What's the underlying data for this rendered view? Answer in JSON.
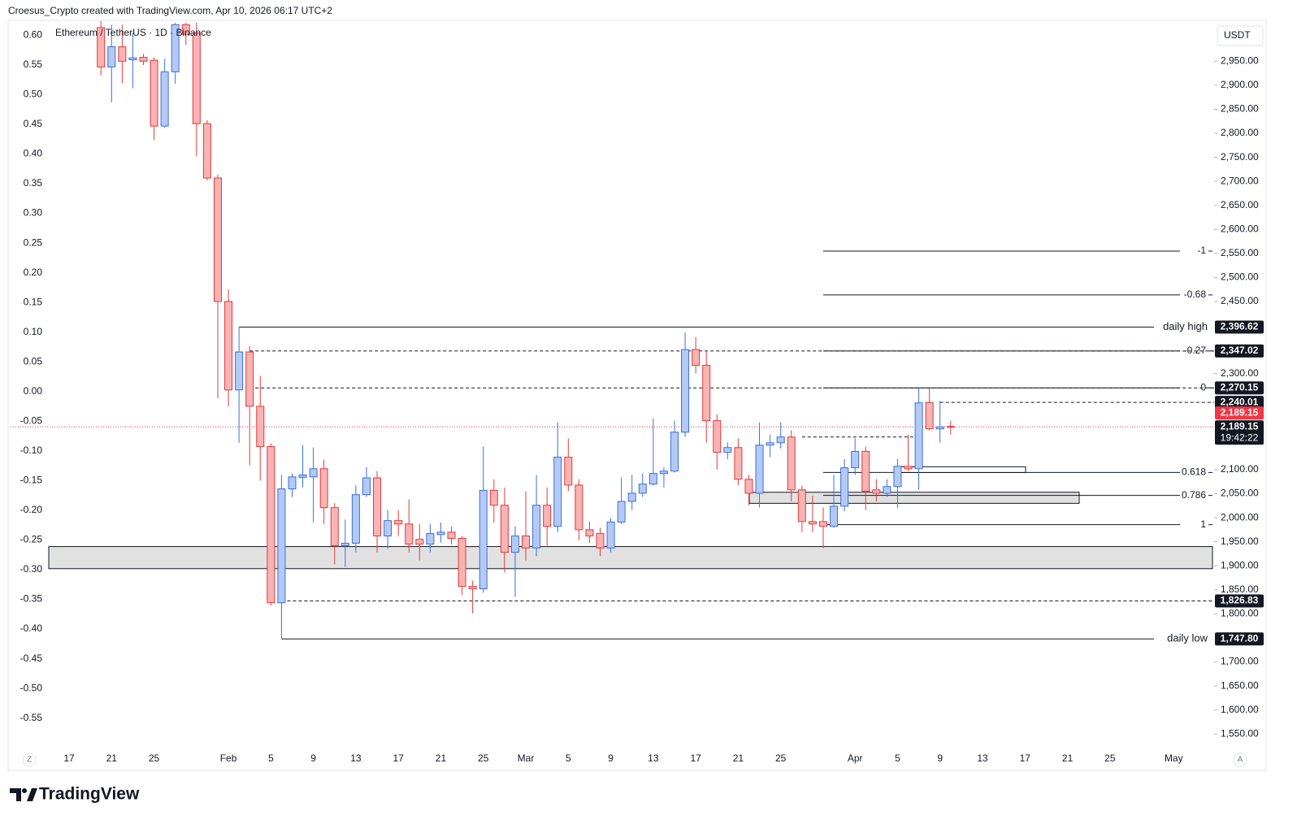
{
  "chart_data": {
    "type": "candlestick",
    "credit": "Croesus_Crypto created with TradingView.com, Apr 10, 2026 06:17 UTC+2",
    "title": "Ethereum / TetherUS · 1D · Binance",
    "currency": "USDT",
    "scale_buttons": [
      "Z",
      "A"
    ],
    "brand": "TradingView",
    "up_color": "#3a6fe0",
    "up_fill": "#b4caf4",
    "down_color": "#e5393b",
    "down_fill": "#f6b4b4",
    "categories": [
      "17",
      null,
      null,
      null,
      "21",
      null,
      null,
      null,
      "25",
      null,
      null,
      null,
      null,
      null,
      null,
      "Feb",
      null,
      null,
      null,
      "5",
      null,
      null,
      null,
      "9",
      null,
      null,
      null,
      "13",
      null,
      null,
      null,
      "17",
      null,
      null,
      null,
      "21",
      null,
      null,
      null,
      "25",
      null,
      null,
      null,
      "Mar",
      null,
      null,
      null,
      "5",
      null,
      null,
      null,
      "9",
      null,
      null,
      null,
      "13",
      null,
      null,
      null,
      "17",
      null,
      null,
      null,
      "21",
      null,
      null,
      null,
      "25",
      null,
      null,
      null,
      null,
      null,
      null,
      "Apr",
      null,
      null,
      null,
      "5",
      null,
      null,
      null,
      "9",
      null,
      null,
      null,
      "13",
      null,
      null,
      null,
      "17",
      null,
      null,
      null,
      "21",
      null,
      null,
      null,
      "25",
      null,
      null,
      null,
      null,
      null,
      "May"
    ],
    "open": [
      null,
      null,
      null,
      3020,
      2938,
      2980,
      2953,
      2958,
      2952,
      2815,
      2928,
      3026,
      3009,
      2820,
      2707,
      2450,
      2266,
      2345,
      2232,
      2148,
      1823,
      2060,
      2084,
      2085,
      2102,
      2021,
      1942,
      1947,
      2048,
      2083,
      1962,
      1994,
      1987,
      1955,
      1945,
      1965,
      1970,
      1957,
      1857,
      1852,
      2057,
      2026,
      1928,
      1962,
      1937,
      2026,
      1982,
      2126,
      2068,
      1975,
      1967,
      1937,
      1991,
      2034,
      2051,
      2070,
      2092,
      2097,
      2178,
      2350,
      2317,
      2202,
      2136,
      2146,
      2080,
      2051,
      2151,
      2156,
      2168,
      2058,
      1992,
      1992,
      1982,
      2024,
      2104,
      2138,
      2058,
      2051,
      2065,
      2107,
      2102,
      2240,
      2185,
      2190,
      null,
      null,
      null,
      null,
      null,
      null,
      null,
      null,
      null,
      null,
      null,
      null,
      null,
      null,
      null,
      null,
      null,
      null,
      null,
      null,
      null
    ],
    "high": [
      null,
      null,
      null,
      3040,
      3026,
      3026,
      3009,
      2965,
      2958,
      2955,
      3030,
      3030,
      3030,
      2827,
      2714,
      2475,
      2396.62,
      2357,
      2295,
      2155,
      2089,
      2092,
      2151,
      2146,
      2121,
      2030,
      1996,
      2067,
      2105,
      2097,
      2016,
      2016,
      2038,
      1987,
      1987,
      1990,
      1982,
      1962,
      1869,
      2148,
      2080,
      2063,
      1982,
      2055,
      2089,
      2063,
      2198,
      2165,
      2080,
      1992,
      1979,
      1999,
      2084,
      2089,
      2092,
      2207,
      2105,
      2202,
      2386,
      2376,
      2347,
      2215,
      2156,
      2165,
      2089,
      2198,
      2173,
      2198,
      2182,
      2067,
      2046,
      2021,
      2089,
      2122,
      2165,
      2148,
      2080,
      2080,
      2122,
      2173,
      2270.15,
      2270,
      2243,
      2202,
      null,
      null,
      null,
      null,
      null,
      null,
      null,
      null,
      null,
      null,
      null,
      null,
      null,
      null,
      null,
      null,
      null,
      null,
      null,
      null,
      null
    ],
    "low": [
      null,
      null,
      null,
      2920,
      2864,
      2904,
      2894,
      2942,
      2786,
      2811,
      2903,
      2984,
      2752,
      2702,
      2249,
      2232,
      2156,
      2109,
      2077,
      1817,
      1747.8,
      2043,
      2063,
      1990,
      1987,
      1903,
      1898,
      1928,
      2043,
      1928,
      1935,
      1962,
      1928,
      1911,
      1928,
      1948,
      1945,
      1839,
      1801,
      1844,
      1990,
      1886,
      1835,
      1911,
      1920,
      1942,
      1970,
      2055,
      1953,
      1948,
      1920,
      1928,
      1987,
      2016,
      2043,
      2067,
      2063,
      2094,
      2168,
      2300,
      2156,
      2100,
      2122,
      2068,
      2026,
      2021,
      2126,
      2144,
      2034,
      1970,
      1970,
      1937,
      1979,
      2013,
      2089,
      2016,
      2034,
      2043,
      2021,
      2097,
      2058,
      2182,
      2156,
      2173,
      null,
      null,
      null,
      null,
      null,
      null,
      null,
      null,
      null,
      null,
      null,
      null,
      null,
      null,
      null,
      null,
      null,
      null,
      null,
      null,
      null
    ],
    "close": [
      null,
      null,
      null,
      2938,
      2980,
      2950,
      2957,
      2950,
      2815,
      2928,
      3026,
      3006,
      2820,
      2707,
      2450,
      2266,
      2345,
      2232,
      2148,
      1823,
      2060,
      2085,
      2089,
      2102,
      2021,
      1942,
      1947,
      2048,
      2083,
      1962,
      1994,
      1987,
      1945,
      1945,
      1967,
      1970,
      1957,
      1857,
      1852,
      2057,
      2026,
      1928,
      1962,
      1937,
      2026,
      1982,
      2126,
      2068,
      1975,
      1962,
      1937,
      1991,
      2034,
      2051,
      2070,
      2092,
      2097,
      2178,
      2350,
      2317,
      2202,
      2136,
      2146,
      2080,
      2051,
      2151,
      2156,
      2168,
      2058,
      1992,
      1987,
      1982,
      2024,
      2104,
      2138,
      2055,
      2051,
      2065,
      2107,
      2102,
      2239,
      2185,
      2189,
      2189.15,
      null,
      null,
      null,
      null,
      null,
      null,
      null,
      null,
      null,
      null,
      null,
      null,
      null,
      null,
      null,
      null,
      null,
      null,
      null,
      null,
      null
    ],
    "ylim": [
      1525,
      3030
    ],
    "yticks": [
      {
        "value": 2950,
        "label": "2,950.00"
      },
      {
        "value": 2900,
        "label": "2,900.00"
      },
      {
        "value": 2850,
        "label": "2,850.00"
      },
      {
        "value": 2800,
        "label": "2,800.00"
      },
      {
        "value": 2750,
        "label": "2,750.00"
      },
      {
        "value": 2700,
        "label": "2,700.00"
      },
      {
        "value": 2650,
        "label": "2,650.00"
      },
      {
        "value": 2600,
        "label": "2,600.00"
      },
      {
        "value": 2550,
        "label": "2,550.00"
      },
      {
        "value": 2500,
        "label": "2,500.00"
      },
      {
        "value": 2450,
        "label": "2,450.00"
      },
      {
        "value": 2300,
        "label": "2,300.00"
      },
      {
        "value": 2100,
        "label": "2,100.00"
      },
      {
        "value": 2050,
        "label": "2,050.00"
      },
      {
        "value": 2000,
        "label": "2,000.00"
      },
      {
        "value": 1950,
        "label": "1,950.00"
      },
      {
        "value": 1900,
        "label": "1,900.00"
      },
      {
        "value": 1850,
        "label": "1,850.00"
      },
      {
        "value": 1800,
        "label": "1,800.00"
      },
      {
        "value": 1700,
        "label": "1,700.00"
      },
      {
        "value": 1650,
        "label": "1,650.00"
      },
      {
        "value": 1600,
        "label": "1,600.00"
      },
      {
        "value": 1550,
        "label": "1,550.00"
      }
    ],
    "y2lim": [
      -0.597,
      0.621
    ],
    "y2ticks": [
      {
        "value": 0.6,
        "label": "0.60"
      },
      {
        "value": 0.55,
        "label": "0.55"
      },
      {
        "value": 0.5,
        "label": "0.50"
      },
      {
        "value": 0.45,
        "label": "0.45"
      },
      {
        "value": 0.4,
        "label": "0.40"
      },
      {
        "value": 0.35,
        "label": "0.35"
      },
      {
        "value": 0.3,
        "label": "0.30"
      },
      {
        "value": 0.25,
        "label": "0.25"
      },
      {
        "value": 0.2,
        "label": "0.20"
      },
      {
        "value": 0.15,
        "label": "0.15"
      },
      {
        "value": 0.1,
        "label": "0.10"
      },
      {
        "value": 0.05,
        "label": "0.05"
      },
      {
        "value": 0,
        "label": "0.00"
      },
      {
        "value": -0.05,
        "label": "-0.05"
      },
      {
        "value": -0.1,
        "label": "-0.10"
      },
      {
        "value": -0.15,
        "label": "-0.15"
      },
      {
        "value": -0.2,
        "label": "-0.20"
      },
      {
        "value": -0.25,
        "label": "-0.25"
      },
      {
        "value": -0.3,
        "label": "-0.30"
      },
      {
        "value": -0.35,
        "label": "-0.35"
      },
      {
        "value": -0.4,
        "label": "-0.40"
      },
      {
        "value": -0.45,
        "label": "-0.45"
      },
      {
        "value": -0.5,
        "label": "-0.50"
      },
      {
        "value": -0.55,
        "label": "-0.55"
      }
    ],
    "levels": [
      {
        "name": "daily high",
        "value": 2396.62,
        "label": "2,396.62",
        "style": "solid"
      },
      {
        "value": 2347.02,
        "label": "2,347.02",
        "style": "dashed"
      },
      {
        "value": 2270.15,
        "label": "2,270.15",
        "style": "dashed"
      },
      {
        "value": 2240.01,
        "label": "2,240.01",
        "style": "dashed"
      },
      {
        "value": 2168,
        "style": "dashed"
      },
      {
        "value": 1826.83,
        "label": "1,826.83",
        "style": "dashed"
      },
      {
        "name": "daily low",
        "value": 1747.8,
        "label": "1,747.80",
        "style": "solid"
      }
    ],
    "fib": {
      "levels": [
        -1,
        -0.68,
        -0.27,
        0,
        0.618,
        0.786,
        1
      ],
      "prices": [
        2554.8,
        2463.7,
        2347.02,
        2270.15,
        2094.2,
        2046.4,
        1985.5
      ]
    },
    "zones": [
      {
        "top": 1940,
        "bottom": 1894
      },
      {
        "top": 2053,
        "bottom": 2030
      },
      {
        "top": 2106,
        "bottom": 2094
      }
    ],
    "last_price": {
      "value": 2189.15,
      "label": "2,189.15",
      "countdown": "19:42:22"
    }
  }
}
